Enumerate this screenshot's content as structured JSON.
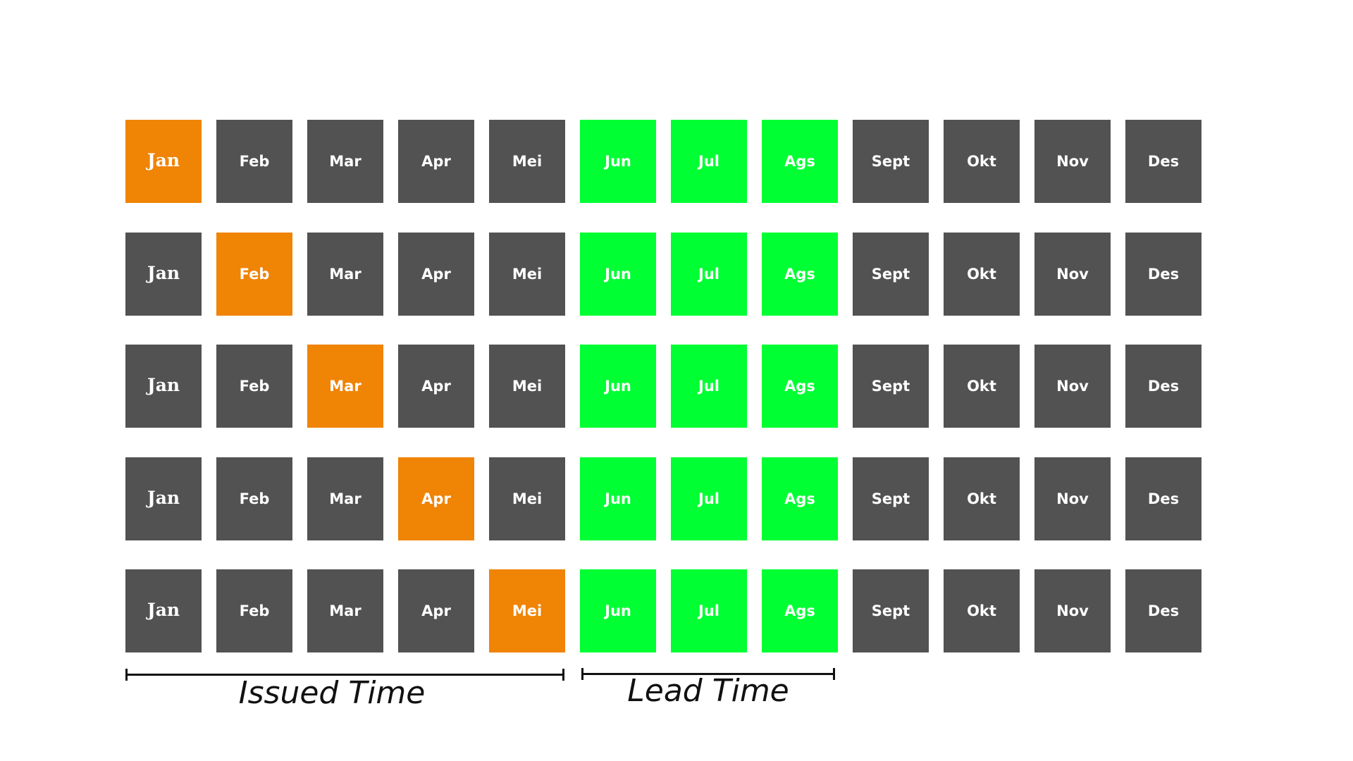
{
  "months": [
    "Jan",
    "Feb",
    "Mar",
    "Apr",
    "Mei",
    "Jun",
    "Jul",
    "Ags",
    "Sept",
    "Okt",
    "Nov",
    "Des"
  ],
  "rows": [
    {
      "issued_month": "Jan"
    },
    {
      "issued_month": "Feb"
    },
    {
      "issued_month": "Mar"
    },
    {
      "issued_month": "Apr"
    },
    {
      "issued_month": "Mei"
    }
  ],
  "lead_months": [
    "Jun",
    "Jul",
    "Ags"
  ],
  "colors": {
    "default": "#525252",
    "issued": "#f08405",
    "lead": "#00ff33",
    "text": "#ffffff"
  },
  "legend": {
    "issued_label": "Issued Time",
    "lead_label": "Lead Time"
  }
}
